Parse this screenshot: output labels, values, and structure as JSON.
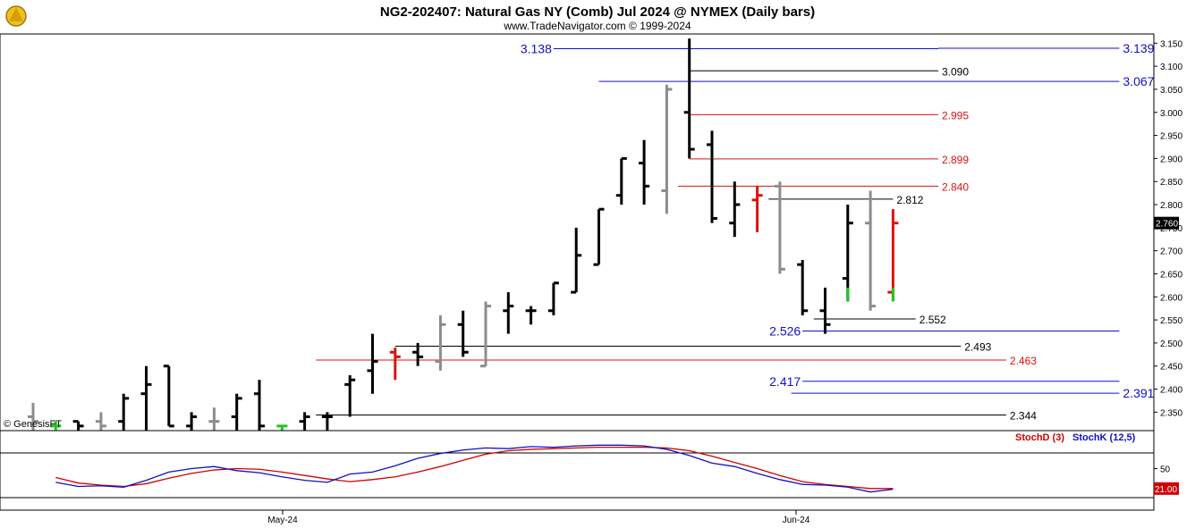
{
  "header": {
    "title": "NG2-202407:  Natural Gas NY (Comb) Jul 2024 @ NYMEX  (Daily bars)",
    "subtitle": "www.TradeNavigator.com © 1999-2024"
  },
  "watermark": "© GenesisFT",
  "indicator_legend": {
    "stoch_d": "StochD (3)",
    "stoch_k": "StochK (12,5)"
  },
  "x_labels": [
    "May-24",
    "Jun-24"
  ],
  "colors": {
    "black": "#000000",
    "gray": "#8c8c8c",
    "red": "#e01010",
    "green": "#1ec81e",
    "blue": "#1010c8",
    "stochK": "#1010c8",
    "stochD": "#d00000"
  },
  "chart_data": [
    {
      "type": "ohlc",
      "title": "NG2-202407:  Natural Gas NY (Comb) Jul 2024 @ NYMEX  (Daily bars)",
      "ylim": [
        2.31,
        3.17
      ],
      "y_ticks": [
        "3.150",
        "3.100",
        "3.050",
        "3.000",
        "2.950",
        "2.900",
        "2.850",
        "2.800",
        "2.750",
        "2.700",
        "2.650",
        "2.600",
        "2.550",
        "2.500",
        "2.450",
        "2.400",
        "2.350"
      ],
      "last_price": "2.760",
      "bars": [
        {
          "o": 2.34,
          "h": 2.37,
          "l": 2.31,
          "c": 2.33,
          "col": "gray"
        },
        {
          "o": 2.32,
          "h": 2.33,
          "l": 2.31,
          "c": 2.32,
          "col": "green"
        },
        {
          "o": 2.33,
          "h": 2.33,
          "l": 2.31,
          "c": 2.32,
          "col": "black"
        },
        {
          "o": 2.33,
          "h": 2.35,
          "l": 2.31,
          "c": 2.32,
          "col": "gray"
        },
        {
          "o": 2.33,
          "h": 2.39,
          "l": 2.31,
          "c": 2.38,
          "col": "black"
        },
        {
          "o": 2.39,
          "h": 2.45,
          "l": 2.31,
          "c": 2.41,
          "col": "black"
        },
        {
          "o": 2.45,
          "h": 2.45,
          "l": 2.32,
          "c": 2.32,
          "col": "black"
        },
        {
          "o": 2.32,
          "h": 2.35,
          "l": 2.31,
          "c": 2.34,
          "col": "black"
        },
        {
          "o": 2.33,
          "h": 2.36,
          "l": 2.31,
          "c": 2.33,
          "col": "gray"
        },
        {
          "o": 2.34,
          "h": 2.39,
          "l": 2.31,
          "c": 2.38,
          "col": "black"
        },
        {
          "o": 2.39,
          "h": 2.42,
          "l": 2.31,
          "c": 2.32,
          "col": "black"
        },
        {
          "o": 2.32,
          "h": 2.32,
          "l": 2.31,
          "c": 2.32,
          "col": "green"
        },
        {
          "o": 2.33,
          "h": 2.35,
          "l": 2.31,
          "c": 2.34,
          "col": "black"
        },
        {
          "o": 2.34,
          "h": 2.35,
          "l": 2.31,
          "c": 2.34,
          "col": "black"
        },
        {
          "o": 2.41,
          "h": 2.43,
          "l": 2.34,
          "c": 2.42,
          "col": "black"
        },
        {
          "o": 2.44,
          "h": 2.52,
          "l": 2.39,
          "c": 2.46,
          "col": "black"
        },
        {
          "o": 2.48,
          "h": 2.49,
          "l": 2.42,
          "c": 2.47,
          "col": "red"
        },
        {
          "o": 2.48,
          "h": 2.5,
          "l": 2.45,
          "c": 2.47,
          "col": "black"
        },
        {
          "o": 2.46,
          "h": 2.56,
          "l": 2.44,
          "c": 2.54,
          "col": "gray"
        },
        {
          "o": 2.54,
          "h": 2.57,
          "l": 2.47,
          "c": 2.48,
          "col": "black"
        },
        {
          "o": 2.45,
          "h": 2.59,
          "l": 2.45,
          "c": 2.58,
          "col": "gray"
        },
        {
          "o": 2.57,
          "h": 2.61,
          "l": 2.52,
          "c": 2.58,
          "col": "black"
        },
        {
          "o": 2.57,
          "h": 2.58,
          "l": 2.54,
          "c": 2.57,
          "col": "black"
        },
        {
          "o": 2.57,
          "h": 2.63,
          "l": 2.56,
          "c": 2.63,
          "col": "black"
        },
        {
          "o": 2.61,
          "h": 2.75,
          "l": 2.61,
          "c": 2.69,
          "col": "black"
        },
        {
          "o": 2.67,
          "h": 2.79,
          "l": 2.67,
          "c": 2.79,
          "col": "black"
        },
        {
          "o": 2.82,
          "h": 2.9,
          "l": 2.8,
          "c": 2.9,
          "col": "black"
        },
        {
          "o": 2.89,
          "h": 2.94,
          "l": 2.8,
          "c": 2.84,
          "col": "black"
        },
        {
          "o": 2.83,
          "h": 3.06,
          "l": 2.78,
          "c": 3.05,
          "col": "gray"
        },
        {
          "o": 3.0,
          "h": 3.16,
          "l": 2.9,
          "c": 2.92,
          "col": "black"
        },
        {
          "o": 2.93,
          "h": 2.96,
          "l": 2.76,
          "c": 2.77,
          "col": "black"
        },
        {
          "o": 2.76,
          "h": 2.85,
          "l": 2.73,
          "c": 2.8,
          "col": "black"
        },
        {
          "o": 2.81,
          "h": 2.84,
          "l": 2.74,
          "c": 2.82,
          "col": "red"
        },
        {
          "o": 2.84,
          "h": 2.85,
          "l": 2.65,
          "c": 2.66,
          "col": "gray"
        },
        {
          "o": 2.67,
          "h": 2.68,
          "l": 2.56,
          "c": 2.57,
          "col": "black"
        },
        {
          "o": 2.57,
          "h": 2.62,
          "l": 2.52,
          "c": 2.54,
          "col": "black"
        },
        {
          "o": 2.64,
          "h": 2.8,
          "l": 2.59,
          "c": 2.76,
          "col": "black"
        },
        {
          "o": 2.76,
          "h": 2.83,
          "l": 2.57,
          "c": 2.58,
          "col": "gray"
        },
        {
          "o": 2.61,
          "h": 2.79,
          "l": 2.59,
          "c": 2.76,
          "col": "red"
        }
      ],
      "levels": [
        {
          "label": "3.138",
          "value": 3.138,
          "color": "blue",
          "from": 23,
          "to": 40,
          "label_side": "left"
        },
        {
          "label": "3.139",
          "value": 3.139,
          "color": "blue",
          "from": 40,
          "to": 48,
          "label_side": "right"
        },
        {
          "label": "3.090",
          "value": 3.09,
          "color": "black",
          "from": 29,
          "to": 40,
          "label_side": "right"
        },
        {
          "label": "3.067",
          "value": 3.067,
          "color": "blue",
          "from": 25,
          "to": 48,
          "label_side": "right"
        },
        {
          "label": "2.995",
          "value": 2.995,
          "color": "red",
          "from": 29,
          "to": 40,
          "label_side": "right"
        },
        {
          "label": "2.899",
          "value": 2.899,
          "color": "red",
          "from": 29,
          "to": 40,
          "label_side": "right"
        },
        {
          "label": "2.840",
          "value": 2.84,
          "color": "red",
          "from": 28.5,
          "to": 40,
          "label_side": "right"
        },
        {
          "label": "2.812",
          "value": 2.812,
          "color": "black",
          "from": 32.5,
          "to": 38,
          "label_side": "right"
        },
        {
          "label": "2.552",
          "value": 2.552,
          "color": "black",
          "from": 34.5,
          "to": 39,
          "label_side": "right"
        },
        {
          "label": "2.526",
          "value": 2.526,
          "color": "blue",
          "from": 34,
          "to": 48,
          "label_side": "left"
        },
        {
          "label": "2.493",
          "value": 2.493,
          "color": "black",
          "from": 16,
          "to": 41,
          "label_side": "right"
        },
        {
          "label": "2.463",
          "value": 2.463,
          "color": "red",
          "from": 12.5,
          "to": 43,
          "label_side": "right"
        },
        {
          "label": "2.417",
          "value": 2.417,
          "color": "blue",
          "from": 34,
          "to": 48,
          "label_side": "left"
        },
        {
          "label": "2.391",
          "value": 2.391,
          "color": "blue",
          "from": 33.5,
          "to": 48,
          "label_side": "right"
        },
        {
          "label": "2.344",
          "value": 2.344,
          "color": "black",
          "from": 12.5,
          "to": 43,
          "label_side": "right"
        }
      ]
    },
    {
      "type": "line",
      "series_names": [
        "StochD (3)",
        "StochK (12,5)"
      ],
      "ylim": [
        0,
        100
      ],
      "y_ticks": [
        "50"
      ],
      "last_value": "21.00",
      "x": [
        1,
        2,
        3,
        4,
        5,
        6,
        7,
        8,
        9,
        10,
        11,
        12,
        13,
        14,
        15,
        16,
        17,
        18,
        19,
        20,
        21,
        22,
        23,
        24,
        25,
        26,
        27,
        28,
        29,
        30,
        31,
        32,
        33,
        34,
        35,
        36,
        37,
        38
      ],
      "series": [
        {
          "name": "StochD (3)",
          "color": "stochD",
          "values": [
            37,
            29,
            26,
            24,
            28,
            36,
            43,
            48,
            50,
            49,
            45,
            40,
            35,
            31,
            34,
            38,
            45,
            53,
            62,
            71,
            76,
            78,
            79,
            80,
            81,
            81,
            81,
            80,
            76,
            68,
            59,
            50,
            40,
            31,
            27,
            24,
            21,
            21
          ]
        },
        {
          "name": "StochK (12,5)",
          "color": "stochK",
          "values": [
            30,
            24,
            25,
            23,
            33,
            45,
            50,
            53,
            47,
            44,
            38,
            33,
            30,
            42,
            45,
            54,
            65,
            72,
            77,
            80,
            79,
            82,
            81,
            83,
            84,
            84,
            83,
            78,
            69,
            58,
            53,
            43,
            34,
            27,
            26,
            23,
            16,
            20
          ]
        }
      ]
    }
  ]
}
